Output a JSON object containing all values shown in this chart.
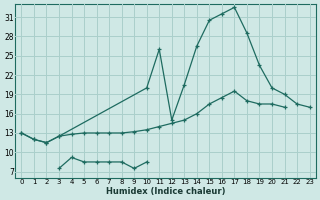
{
  "xlabel": "Humidex (Indice chaleur)",
  "background_color": "#cfe8e5",
  "grid_color": "#aacfcb",
  "line_color": "#1e6b60",
  "xlim": [
    -0.5,
    23.5
  ],
  "ylim": [
    6,
    33
  ],
  "yticks": [
    7,
    10,
    13,
    16,
    19,
    22,
    25,
    28,
    31
  ],
  "xticks": [
    0,
    1,
    2,
    3,
    4,
    5,
    6,
    7,
    8,
    9,
    10,
    11,
    12,
    13,
    14,
    15,
    16,
    17,
    18,
    19,
    20,
    21,
    22,
    23
  ],
  "line_big_x": [
    0,
    1,
    2,
    3,
    4,
    5,
    6,
    7,
    8,
    9,
    10,
    11,
    12,
    13,
    14,
    15,
    16,
    17,
    18,
    19,
    20,
    21
  ],
  "line_big_y": [
    13,
    12,
    11.5,
    12.5,
    12.8,
    13.0,
    13.0,
    13.0,
    13.0,
    13.2,
    13.5,
    14.0,
    14.5,
    15.0,
    16.0,
    17.5,
    18.5,
    19.5,
    18.0,
    17.5,
    17.5,
    17.0
  ],
  "line_mid_x": [
    0,
    1,
    2,
    3,
    10,
    11,
    12,
    13,
    14,
    15,
    16,
    17,
    18,
    19,
    20,
    21,
    22,
    23
  ],
  "line_mid_y": [
    13,
    12,
    11.5,
    12.5,
    20.0,
    26.0,
    15.0,
    20.5,
    26.5,
    30.5,
    31.5,
    32.5,
    28.5,
    23.5,
    20.0,
    19.0,
    17.5,
    17.0
  ],
  "line_low_x": [
    3,
    4,
    5,
    6,
    7,
    8,
    9,
    10
  ],
  "line_low_y": [
    7.5,
    9.2,
    8.5,
    8.5,
    8.5,
    8.5,
    7.5,
    8.5
  ]
}
